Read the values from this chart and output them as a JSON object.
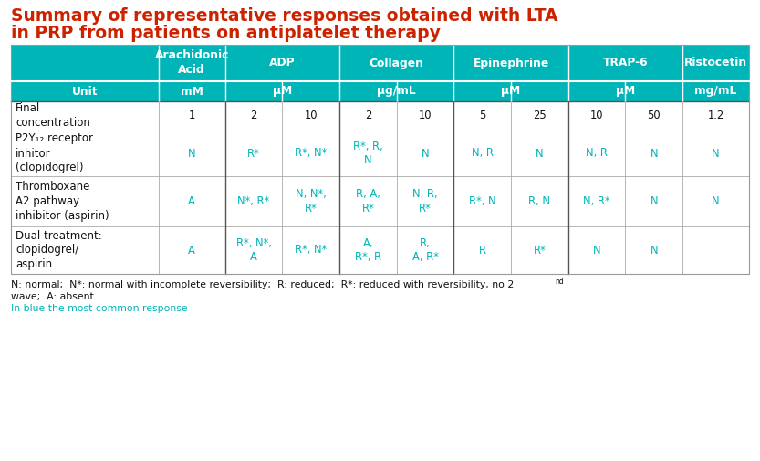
{
  "title_line1": "Summary of representative responses obtained with LTA",
  "title_line2": "in PRP from patients on antiplatelet therapy",
  "title_color": "#cc2200",
  "background_color": "#ffffff",
  "header_bg_color": "#00b5b8",
  "teal_color": "#00b5b8",
  "dark_color": "#111111",
  "white": "#ffffff",
  "col_header_spans": [
    {
      "label": "",
      "col": 0,
      "span": 1
    },
    {
      "label": "Arachidonic\nAcid",
      "col": 1,
      "span": 1
    },
    {
      "label": "ADP",
      "col": 2,
      "span": 2
    },
    {
      "label": "Collagen",
      "col": 4,
      "span": 2
    },
    {
      "label": "Epinephrine",
      "col": 6,
      "span": 2
    },
    {
      "label": "TRAP-6",
      "col": 8,
      "span": 2
    },
    {
      "label": "Ristocetin",
      "col": 10,
      "span": 1
    }
  ],
  "unit_row_spans": [
    {
      "label": "Unit",
      "col": 0,
      "span": 1
    },
    {
      "label": "mM",
      "col": 1,
      "span": 1
    },
    {
      "label": "μM",
      "col": 2,
      "span": 2
    },
    {
      "label": "μg/mL",
      "col": 4,
      "span": 2
    },
    {
      "label": "μM",
      "col": 6,
      "span": 2
    },
    {
      "label": "μM",
      "col": 8,
      "span": 2
    },
    {
      "label": "mg/mL",
      "col": 10,
      "span": 1
    }
  ],
  "row_data": [
    {
      "label": "Final\nconcentration",
      "cells": [
        "1",
        "2",
        "10",
        "2",
        "10",
        "5",
        "25",
        "10",
        "50",
        "1.2"
      ],
      "color": "dark"
    },
    {
      "label": "P2Y₁₂ receptor\ninhitor\n(clopidogrel)",
      "cells": [
        "N",
        "R*",
        "R*, N*",
        "R*, R,\nN",
        "N",
        "N, R",
        "N",
        "N, R",
        "N",
        "N"
      ],
      "color": "teal"
    },
    {
      "label": "Thromboxane\nA2 pathway\ninhibitor (aspirin)",
      "cells": [
        "A",
        "N*, R*",
        "N, N*,\nR*",
        "R, A,\nR*",
        "N, R,\nR*",
        "R*, N",
        "R, N",
        "N, R*",
        "N",
        "N"
      ],
      "color": "teal"
    },
    {
      "label": "Dual treatment:\nclopidogrel/\naspirin",
      "cells": [
        "A",
        "R*, N*,\nA",
        "R*, N*",
        "A,\nR*, R",
        "R,\nA, R*",
        "R",
        "R*",
        "N",
        "N",
        ""
      ],
      "color": "teal"
    }
  ],
  "col_widths_rel": [
    1.6,
    0.72,
    0.62,
    0.62,
    0.62,
    0.62,
    0.62,
    0.62,
    0.62,
    0.62,
    0.72
  ],
  "footnote_line1": "N: normal;  N*: normal with incomplete reversibility;  R: reduced;  R*: reduced with reversibility, no 2",
  "footnote_nd": "nd",
  "footnote_line2": "wave;  A: absent",
  "footnote_line3": "In blue the most common response",
  "footnote_line3_color": "#00b5b8"
}
